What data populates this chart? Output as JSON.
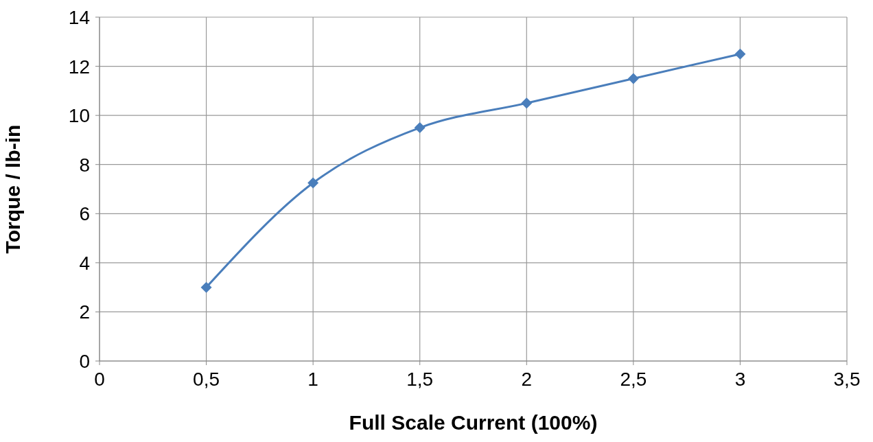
{
  "chart_data": {
    "type": "line",
    "xlabel": "Full Scale Current (100%)",
    "ylabel": "Torque / lb-in",
    "x": [
      0.5,
      1,
      1.5,
      2,
      2.5,
      3
    ],
    "series": [
      {
        "color": "#4a7ebb",
        "values": [
          3,
          7.25,
          9.5,
          10.5,
          11.5,
          12.5
        ]
      }
    ],
    "xlim": [
      0,
      3.5
    ],
    "xticks": [
      0,
      {
        "value": 0.5,
        "label": "0,5"
      },
      1,
      {
        "value": 1.5,
        "label": "1,5"
      },
      2,
      {
        "value": 2.5,
        "label": "2,5"
      },
      3,
      {
        "value": 3.5,
        "label": "3,5"
      }
    ],
    "ylim": [
      0,
      14
    ],
    "yticks": [
      0,
      2,
      4,
      6,
      8,
      10,
      12,
      14
    ],
    "grid": true,
    "marker": "diamond",
    "line_style": "solid"
  }
}
